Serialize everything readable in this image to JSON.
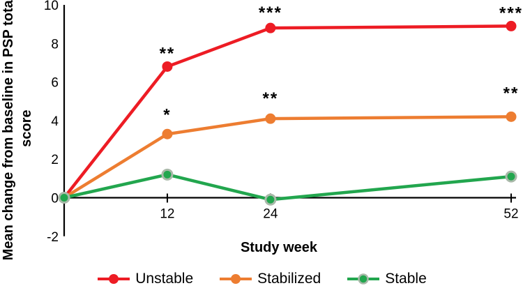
{
  "chart_data": {
    "type": "line",
    "xlabel": "Study week",
    "ylabel_line1": "Mean change from baseline in PSP total",
    "ylabel_line2": "score",
    "x": [
      0,
      12,
      24,
      52
    ],
    "x_ticks": [
      12,
      24,
      52
    ],
    "y_ticks": [
      10,
      8,
      6,
      4,
      2,
      0,
      -2
    ],
    "xlim": [
      0,
      52
    ],
    "ylim": [
      -2,
      10
    ],
    "grid": false,
    "legend_position": "bottom",
    "axis_color": "#000000",
    "text_color": "#000000",
    "series": [
      {
        "name": "Unstable",
        "color": "#ed1c24",
        "values": [
          0,
          6.8,
          8.8,
          8.9
        ],
        "annotations": [
          {
            "week": 12,
            "text": "**",
            "dy": -11
          },
          {
            "week": 24,
            "text": "***",
            "dy": -14
          },
          {
            "week": 52,
            "text": "***",
            "dy": -11
          }
        ]
      },
      {
        "name": "Stabilized",
        "color": "#ed7d31",
        "values": [
          0,
          3.3,
          4.1,
          4.2
        ],
        "annotations": [
          {
            "week": 12,
            "text": "*",
            "dy": -20
          },
          {
            "week": 24,
            "text": "**",
            "dy": -21
          },
          {
            "week": 52,
            "text": "**",
            "dy": -26
          }
        ]
      },
      {
        "name": "Stable",
        "color": "#22a64e",
        "marker_ring": "#a9b9a9",
        "values": [
          0,
          1.2,
          -0.1,
          1.1
        ],
        "annotations": []
      }
    ]
  }
}
